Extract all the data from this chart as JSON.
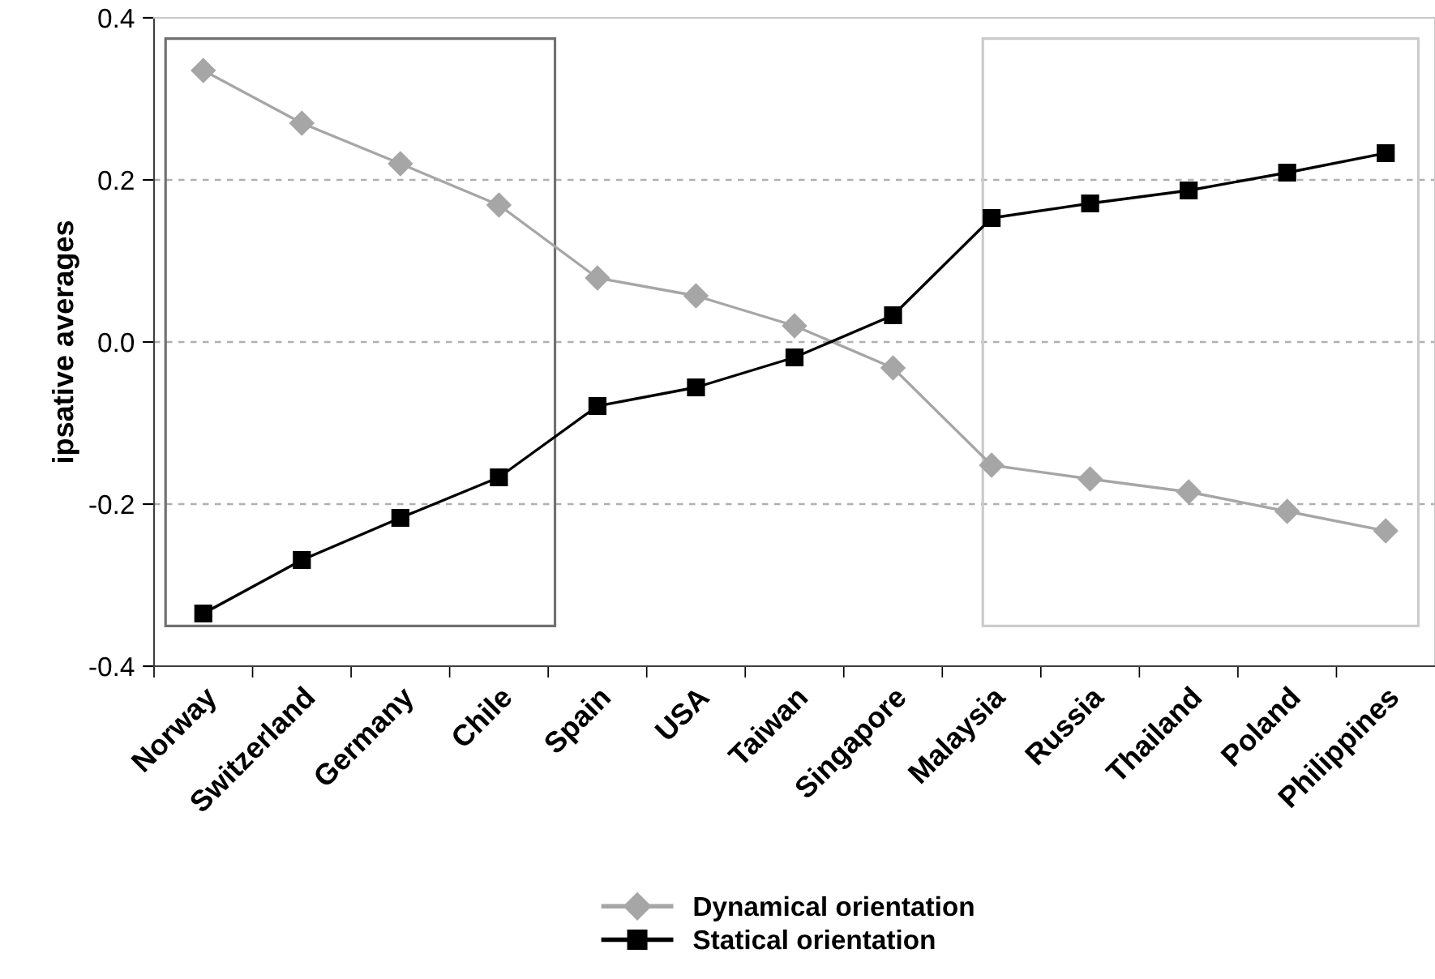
{
  "chart_data": {
    "type": "line",
    "ylabel": "ipsative averages",
    "categories": [
      "Norway",
      "Switzerland",
      "Germany",
      "Chile",
      "Spain",
      "USA",
      "Taiwan",
      "Singapore",
      "Malaysia",
      "Russia",
      "Thailand",
      "Poland",
      "Philippines"
    ],
    "series": [
      {
        "name": "Dynamical orientation",
        "color": "#a6a6a6",
        "marker": "diamond",
        "values": [
          0.335,
          0.27,
          0.22,
          0.169,
          0.079,
          0.057,
          0.02,
          -0.032,
          -0.152,
          -0.169,
          -0.185,
          -0.209,
          -0.233
        ]
      },
      {
        "name": "Statical orientation",
        "color": "#000000",
        "marker": "square",
        "values": [
          -0.335,
          -0.269,
          -0.217,
          -0.167,
          -0.079,
          -0.056,
          -0.019,
          0.033,
          0.153,
          0.171,
          0.187,
          0.209,
          0.233
        ]
      }
    ],
    "ylim": [
      -0.4,
      0.4
    ],
    "yticks": [
      -0.4,
      -0.2,
      {
        "value": 0.0,
        "label": "0.0"
      },
      0.2,
      0.4
    ],
    "grid": "y",
    "legend": "bottom",
    "line_style": "solid"
  }
}
